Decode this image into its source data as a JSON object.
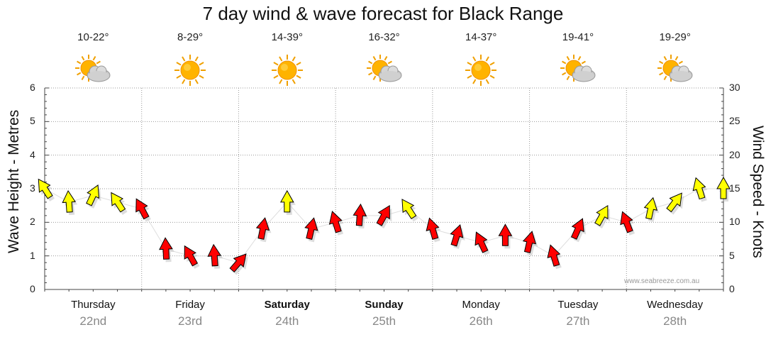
{
  "chart_data": {
    "type": "line",
    "title": "7 day wind & wave forecast for Black Range",
    "ylabel_left": "Wave Height - Metres",
    "ylabel_right": "Wind Speed - Knots",
    "ylim_left": [
      0,
      6
    ],
    "ylim_right": [
      0,
      30
    ],
    "yticks_left": [
      "0",
      "1",
      "2",
      "3",
      "4",
      "5",
      "6"
    ],
    "yticks_right": [
      "0",
      "5",
      "10",
      "15",
      "20",
      "25",
      "30"
    ],
    "grid": true,
    "watermark": "www.seabreeze.com.au",
    "days": [
      {
        "name": "Thursday",
        "date": "22nd",
        "temp": "10-22°",
        "icon": "partly-cloudy-icon",
        "bold": false
      },
      {
        "name": "Friday",
        "date": "23rd",
        "temp": "8-29°",
        "icon": "sun-icon",
        "bold": false
      },
      {
        "name": "Saturday",
        "date": "24th",
        "temp": "14-39°",
        "icon": "sun-icon",
        "bold": true
      },
      {
        "name": "Sunday",
        "date": "25th",
        "temp": "16-32°",
        "icon": "partly-cloudy-icon",
        "bold": true
      },
      {
        "name": "Monday",
        "date": "26th",
        "temp": "14-37°",
        "icon": "sun-icon",
        "bold": false
      },
      {
        "name": "Tuesday",
        "date": "27th",
        "temp": "19-41°",
        "icon": "partly-cloudy-icon",
        "bold": false
      },
      {
        "name": "Wednesday",
        "date": "28th",
        "temp": "19-29°",
        "icon": "partly-cloudy-icon",
        "bold": false
      }
    ],
    "series": [
      {
        "name": "Wind Speed - Knots",
        "unit": "knots",
        "x_days": [
          0.0,
          0.25,
          0.5,
          0.75,
          1.0,
          1.25,
          1.5,
          1.75,
          2.0,
          2.25,
          2.5,
          2.75,
          3.0,
          3.25,
          3.5,
          3.75,
          4.0,
          4.25,
          4.5,
          4.75,
          5.0,
          5.25,
          5.5,
          5.75,
          6.0,
          6.25,
          6.5,
          6.75,
          7.0
        ],
        "values": [
          15,
          13,
          14,
          13,
          12,
          6,
          5,
          5,
          4,
          9,
          13,
          9,
          10,
          11,
          11,
          12,
          9,
          8,
          7,
          8,
          7,
          5,
          9,
          11,
          10,
          12,
          13,
          15,
          15
        ],
        "colors": [
          "#ffff00",
          "#ffff00",
          "#ffff00",
          "#ffff00",
          "#ff0000",
          "#ff0000",
          "#ff0000",
          "#ff0000",
          "#ff0000",
          "#ff0000",
          "#ffff00",
          "#ff0000",
          "#ff0000",
          "#ff0000",
          "#ff0000",
          "#ffff00",
          "#ff0000",
          "#ff0000",
          "#ff0000",
          "#ff0000",
          "#ff0000",
          "#ff0000",
          "#ff0000",
          "#ffff00",
          "#ff0000",
          "#ffff00",
          "#ffff00",
          "#ffff00",
          "#ffff00"
        ]
      }
    ],
    "colors": {
      "strong_wind": "#ffff00",
      "light_wind": "#ff0000",
      "arrow_outline": "#000000",
      "grid": "#999999",
      "date": "#888888"
    }
  }
}
